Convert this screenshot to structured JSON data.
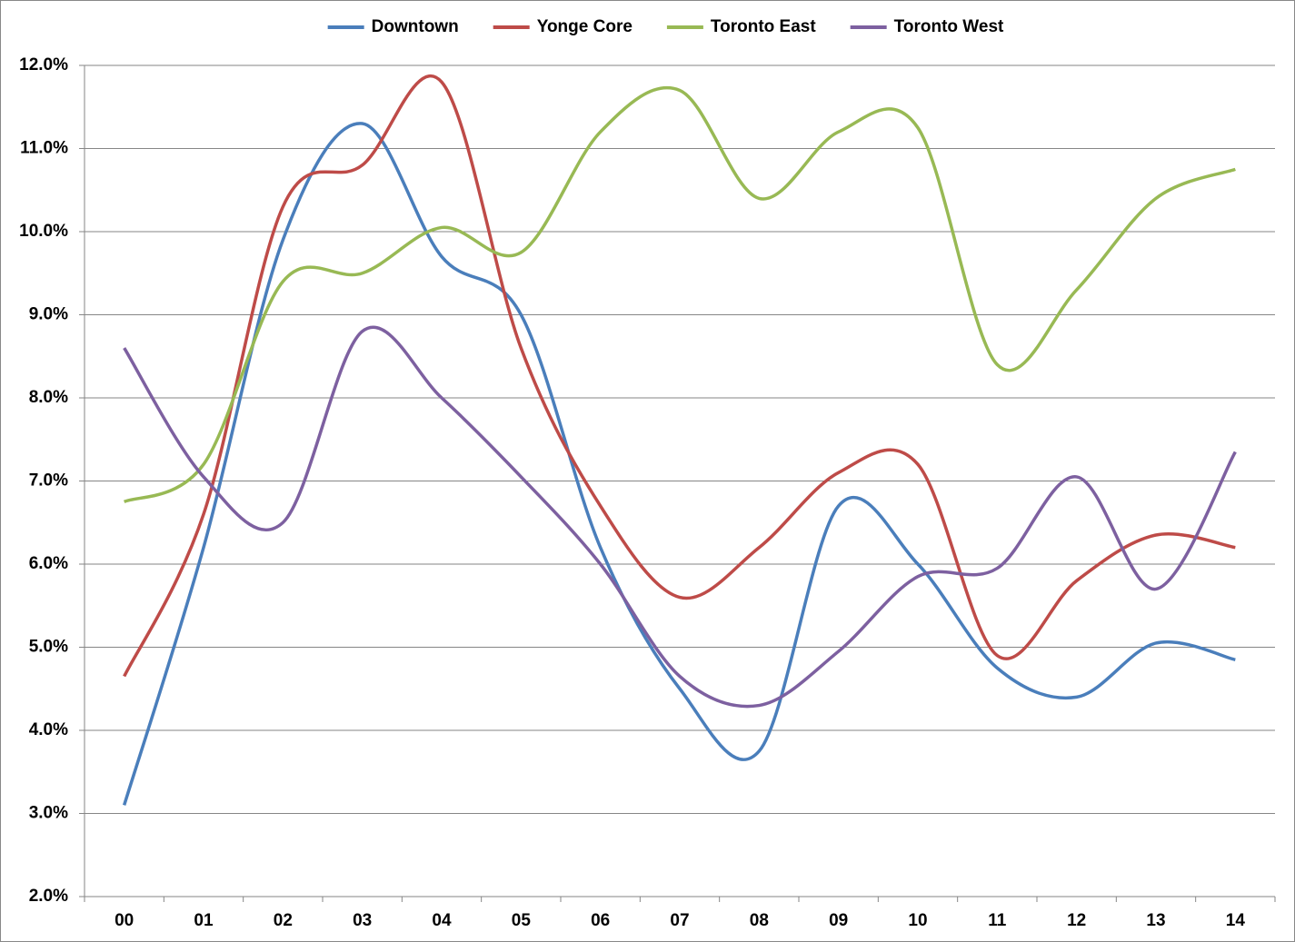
{
  "chart_data": {
    "type": "line",
    "categories": [
      "00",
      "01",
      "02",
      "03",
      "04",
      "05",
      "06",
      "07",
      "08",
      "09",
      "10",
      "11",
      "12",
      "13",
      "14"
    ],
    "series": [
      {
        "name": "Downtown",
        "color": "#4a7ebb",
        "values": [
          3.1,
          6.2,
          9.9,
          11.3,
          9.7,
          9.0,
          6.2,
          4.5,
          3.75,
          6.7,
          6.0,
          4.75,
          4.4,
          5.05,
          4.85
        ]
      },
      {
        "name": "Yonge Core",
        "color": "#be4b48",
        "values": [
          4.65,
          6.6,
          10.3,
          10.8,
          11.8,
          8.6,
          6.7,
          5.6,
          6.2,
          7.1,
          7.2,
          4.9,
          5.8,
          6.35,
          6.2
        ]
      },
      {
        "name": "Toronto East",
        "color": "#98b954",
        "values": [
          6.75,
          7.2,
          9.4,
          9.5,
          10.05,
          9.75,
          11.2,
          11.7,
          10.4,
          11.2,
          11.25,
          8.4,
          9.3,
          10.4,
          10.75
        ]
      },
      {
        "name": "Toronto West",
        "color": "#7d60a0",
        "values": [
          8.6,
          7.05,
          6.5,
          8.8,
          8.0,
          7.05,
          6.0,
          4.65,
          4.3,
          4.95,
          5.85,
          5.95,
          7.05,
          5.7,
          7.35
        ]
      }
    ],
    "ylim": [
      2,
      12
    ],
    "yticks": [
      {
        "value": 2,
        "label": "2.0%"
      },
      {
        "value": 3,
        "label": "3.0%"
      },
      {
        "value": 4,
        "label": "4.0%"
      },
      {
        "value": 5,
        "label": "5.0%"
      },
      {
        "value": 6,
        "label": "6.0%"
      },
      {
        "value": 7,
        "label": "7.0%"
      },
      {
        "value": 8,
        "label": "8.0%"
      },
      {
        "value": 9,
        "label": "9.0%"
      },
      {
        "value": 10,
        "label": "10.0%"
      },
      {
        "value": 11,
        "label": "11.0%"
      },
      {
        "value": 12,
        "label": "12.0%"
      }
    ],
    "grid": true,
    "legend": "top",
    "smooth": true
  }
}
